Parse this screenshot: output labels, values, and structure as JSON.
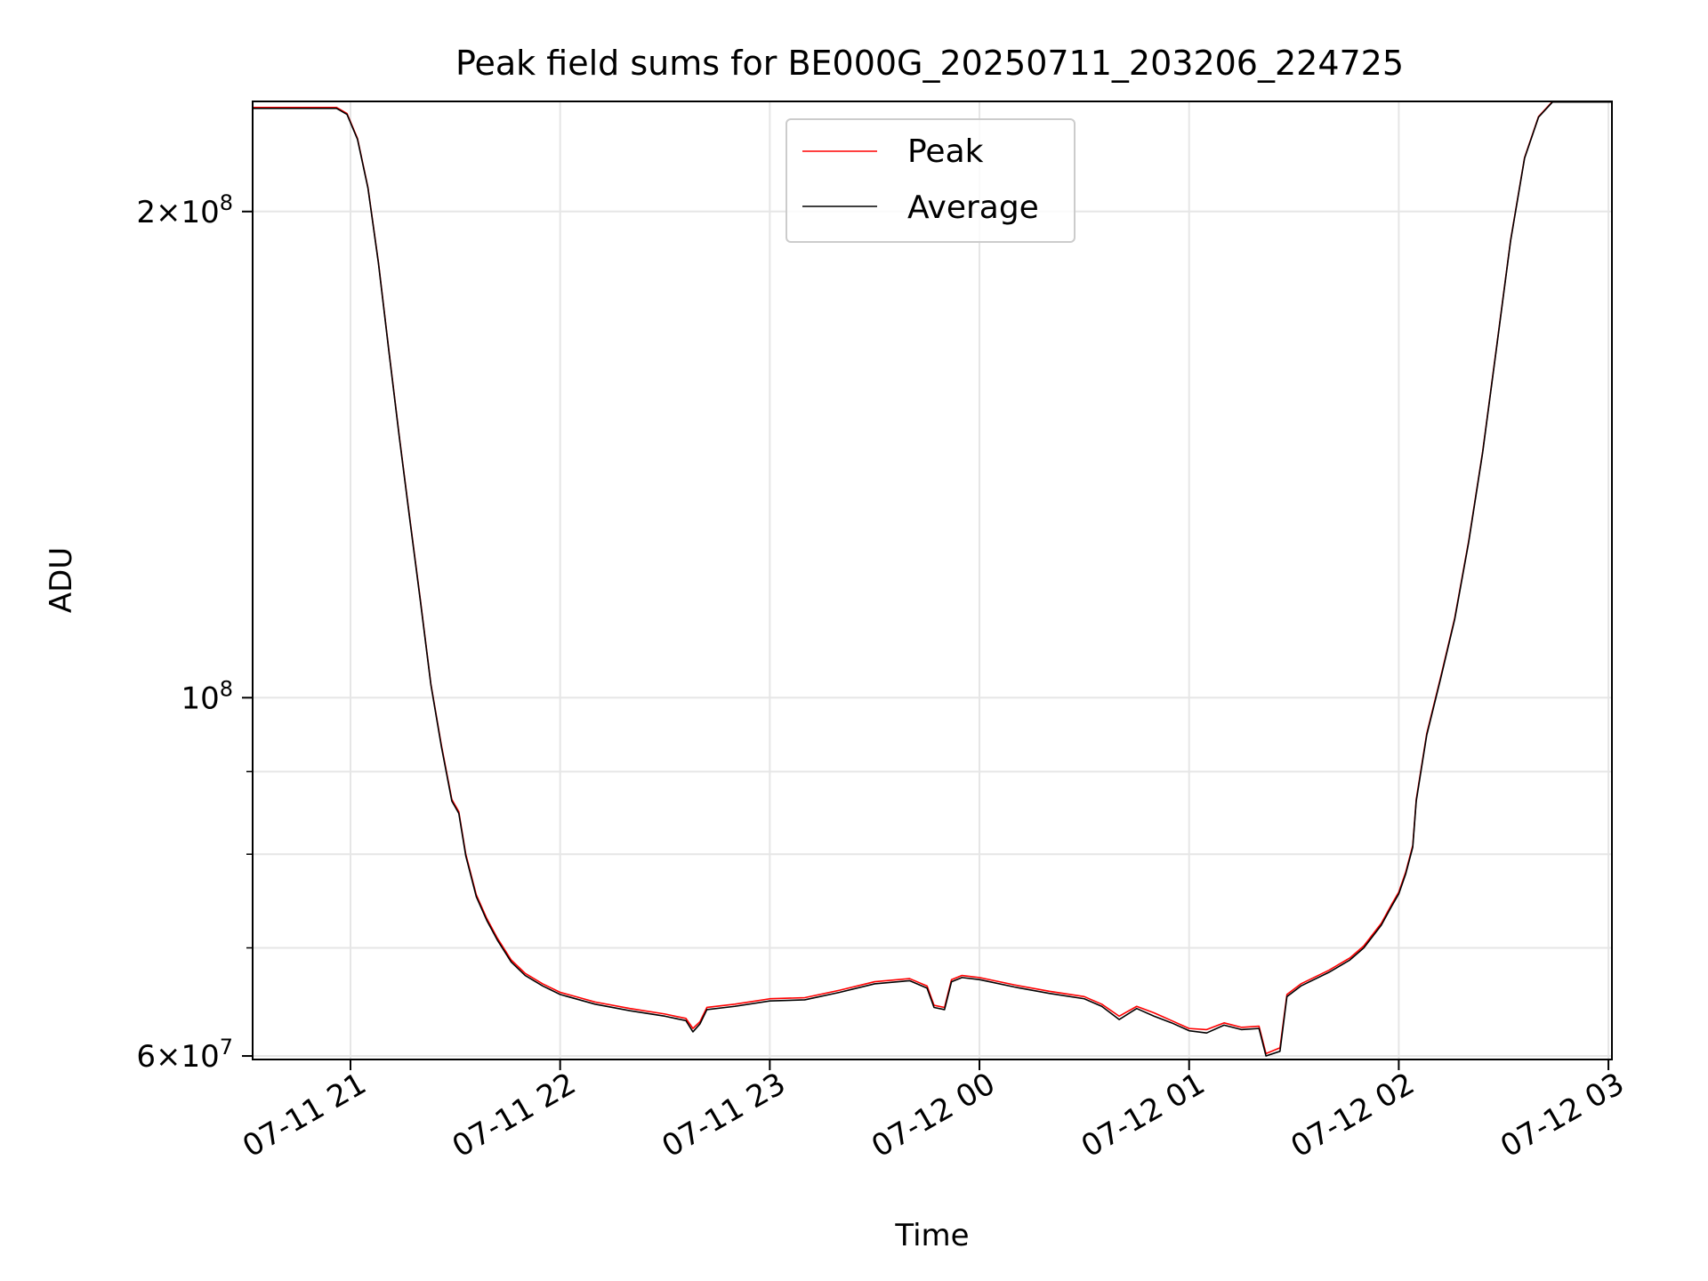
{
  "chart_data": {
    "type": "line",
    "title": "Peak field sums for BE000G_20250711_203206_224725",
    "xlabel": "Time",
    "ylabel": "ADU",
    "yscale": "log",
    "grid": true,
    "legend_position": "upper center",
    "xlim": [
      "2025-07-11 20:32",
      "2025-07-12 03:01"
    ],
    "ylim": [
      59700000,
      234000000
    ],
    "x_ticks": [
      "2025-07-11 21:00",
      "2025-07-11 22:00",
      "2025-07-11 23:00",
      "2025-07-12 00:00",
      "2025-07-12 01:00",
      "2025-07-12 02:00",
      "2025-07-12 03:00"
    ],
    "x_tick_labels": [
      "07-11 21",
      "07-11 22",
      "07-11 23",
      "07-12 00",
      "07-12 01",
      "07-12 02",
      "07-12 03"
    ],
    "y_major_ticks": [
      {
        "value": 60000000,
        "mantissa": "6",
        "exponent": "7"
      },
      {
        "value": 100000000,
        "mantissa": "",
        "exponent": "8"
      },
      {
        "value": 200000000,
        "mantissa": "2",
        "exponent": "8"
      }
    ],
    "y_minor_ticks": [
      70000000,
      80000000,
      90000000
    ],
    "series": [
      {
        "name": "Peak",
        "color": "#ff0000",
        "points": [
          [
            "2025-07-11 20:32",
            232000000
          ],
          [
            "2025-07-11 20:56",
            232000000
          ],
          [
            "2025-07-11 20:59",
            230000000
          ],
          [
            "2025-07-11 21:02",
            222000000
          ],
          [
            "2025-07-11 21:05",
            207000000
          ],
          [
            "2025-07-11 21:08",
            186000000
          ],
          [
            "2025-07-11 21:11",
            164000000
          ],
          [
            "2025-07-11 21:14",
            145000000
          ],
          [
            "2025-07-11 21:17",
            129000000
          ],
          [
            "2025-07-11 21:20",
            115000000
          ],
          [
            "2025-07-11 21:23",
            102000000
          ],
          [
            "2025-07-11 21:26",
            93500000
          ],
          [
            "2025-07-11 21:29",
            86500000
          ],
          [
            "2025-07-11 21:31",
            85000000
          ],
          [
            "2025-07-11 21:33",
            80000000
          ],
          [
            "2025-07-11 21:36",
            75500000
          ],
          [
            "2025-07-11 21:39",
            73000000
          ],
          [
            "2025-07-11 21:42",
            71000000
          ],
          [
            "2025-07-11 21:46",
            68800000
          ],
          [
            "2025-07-11 21:50",
            67500000
          ],
          [
            "2025-07-11 21:55",
            66500000
          ],
          [
            "2025-07-11 22:00",
            65700000
          ],
          [
            "2025-07-11 22:10",
            64800000
          ],
          [
            "2025-07-11 22:20",
            64200000
          ],
          [
            "2025-07-11 22:30",
            63700000
          ],
          [
            "2025-07-11 22:36",
            63300000
          ],
          [
            "2025-07-11 22:38",
            62400000
          ],
          [
            "2025-07-11 22:40",
            63000000
          ],
          [
            "2025-07-11 22:42",
            64300000
          ],
          [
            "2025-07-11 22:50",
            64600000
          ],
          [
            "2025-07-11 23:00",
            65100000
          ],
          [
            "2025-07-11 23:10",
            65200000
          ],
          [
            "2025-07-11 23:20",
            65900000
          ],
          [
            "2025-07-11 23:30",
            66700000
          ],
          [
            "2025-07-11 23:40",
            67000000
          ],
          [
            "2025-07-11 23:45",
            66300000
          ],
          [
            "2025-07-11 23:47",
            64500000
          ],
          [
            "2025-07-11 23:50",
            64300000
          ],
          [
            "2025-07-11 23:52",
            66900000
          ],
          [
            "2025-07-11 23:55",
            67300000
          ],
          [
            "2025-07-12 00:00",
            67100000
          ],
          [
            "2025-07-12 00:10",
            66400000
          ],
          [
            "2025-07-12 00:20",
            65800000
          ],
          [
            "2025-07-12 00:30",
            65300000
          ],
          [
            "2025-07-12 00:35",
            64600000
          ],
          [
            "2025-07-12 00:40",
            63500000
          ],
          [
            "2025-07-12 00:45",
            64400000
          ],
          [
            "2025-07-12 00:50",
            63800000
          ],
          [
            "2025-07-12 00:55",
            63100000
          ],
          [
            "2025-07-12 01:00",
            62400000
          ],
          [
            "2025-07-12 01:05",
            62300000
          ],
          [
            "2025-07-12 01:10",
            62900000
          ],
          [
            "2025-07-12 01:15",
            62500000
          ],
          [
            "2025-07-12 01:20",
            62600000
          ],
          [
            "2025-07-12 01:22",
            60200000
          ],
          [
            "2025-07-12 01:26",
            60700000
          ],
          [
            "2025-07-12 01:28",
            65500000
          ],
          [
            "2025-07-12 01:32",
            66500000
          ],
          [
            "2025-07-12 01:40",
            67800000
          ],
          [
            "2025-07-12 01:46",
            69000000
          ],
          [
            "2025-07-12 01:50",
            70200000
          ],
          [
            "2025-07-12 01:55",
            72500000
          ],
          [
            "2025-07-12 01:58",
            74500000
          ],
          [
            "2025-07-12 02:00",
            75800000
          ],
          [
            "2025-07-12 02:02",
            78000000
          ],
          [
            "2025-07-12 02:04",
            81000000
          ],
          [
            "2025-07-12 02:05",
            86500000
          ],
          [
            "2025-07-12 02:08",
            95000000
          ],
          [
            "2025-07-12 02:12",
            103000000
          ],
          [
            "2025-07-12 02:16",
            112000000
          ],
          [
            "2025-07-12 02:20",
            125000000
          ],
          [
            "2025-07-12 02:24",
            142000000
          ],
          [
            "2025-07-12 02:28",
            165000000
          ],
          [
            "2025-07-12 02:32",
            192000000
          ],
          [
            "2025-07-12 02:36",
            216000000
          ],
          [
            "2025-07-12 02:40",
            229000000
          ],
          [
            "2025-07-12 02:44",
            234000000
          ],
          [
            "2025-07-12 03:01",
            234000000
          ]
        ]
      },
      {
        "name": "Average",
        "color": "#000000",
        "points": [
          [
            "2025-07-11 20:32",
            231700000
          ],
          [
            "2025-07-11 20:56",
            231700000
          ],
          [
            "2025-07-11 20:59",
            229700000
          ],
          [
            "2025-07-11 21:02",
            221700000
          ],
          [
            "2025-07-11 21:05",
            206800000
          ],
          [
            "2025-07-11 21:08",
            185800000
          ],
          [
            "2025-07-11 21:11",
            163800000
          ],
          [
            "2025-07-11 21:14",
            144800000
          ],
          [
            "2025-07-11 21:17",
            128800000
          ],
          [
            "2025-07-11 21:20",
            114800000
          ],
          [
            "2025-07-11 21:23",
            101900000
          ],
          [
            "2025-07-11 21:26",
            93300000
          ],
          [
            "2025-07-11 21:29",
            86300000
          ],
          [
            "2025-07-11 21:31",
            84800000
          ],
          [
            "2025-07-11 21:33",
            79800000
          ],
          [
            "2025-07-11 21:36",
            75300000
          ],
          [
            "2025-07-11 21:39",
            72800000
          ],
          [
            "2025-07-11 21:42",
            70800000
          ],
          [
            "2025-07-11 21:46",
            68600000
          ],
          [
            "2025-07-11 21:50",
            67300000
          ],
          [
            "2025-07-11 21:55",
            66300000
          ],
          [
            "2025-07-11 22:00",
            65500000
          ],
          [
            "2025-07-11 22:10",
            64600000
          ],
          [
            "2025-07-11 22:20",
            64000000
          ],
          [
            "2025-07-11 22:30",
            63500000
          ],
          [
            "2025-07-11 22:36",
            63100000
          ],
          [
            "2025-07-11 22:38",
            62100000
          ],
          [
            "2025-07-11 22:40",
            62800000
          ],
          [
            "2025-07-11 22:42",
            64100000
          ],
          [
            "2025-07-11 22:50",
            64400000
          ],
          [
            "2025-07-11 23:00",
            64900000
          ],
          [
            "2025-07-11 23:10",
            65000000
          ],
          [
            "2025-07-11 23:20",
            65700000
          ],
          [
            "2025-07-11 23:30",
            66500000
          ],
          [
            "2025-07-11 23:40",
            66800000
          ],
          [
            "2025-07-11 23:45",
            66100000
          ],
          [
            "2025-07-11 23:47",
            64300000
          ],
          [
            "2025-07-11 23:50",
            64100000
          ],
          [
            "2025-07-11 23:52",
            66700000
          ],
          [
            "2025-07-11 23:55",
            67100000
          ],
          [
            "2025-07-12 00:00",
            66900000
          ],
          [
            "2025-07-12 00:10",
            66200000
          ],
          [
            "2025-07-12 00:20",
            65600000
          ],
          [
            "2025-07-12 00:30",
            65100000
          ],
          [
            "2025-07-12 00:35",
            64400000
          ],
          [
            "2025-07-12 00:40",
            63200000
          ],
          [
            "2025-07-12 00:45",
            64200000
          ],
          [
            "2025-07-12 00:50",
            63500000
          ],
          [
            "2025-07-12 00:55",
            62900000
          ],
          [
            "2025-07-12 01:00",
            62200000
          ],
          [
            "2025-07-12 01:05",
            62000000
          ],
          [
            "2025-07-12 01:10",
            62700000
          ],
          [
            "2025-07-12 01:15",
            62300000
          ],
          [
            "2025-07-12 01:20",
            62400000
          ],
          [
            "2025-07-12 01:22",
            60000000
          ],
          [
            "2025-07-12 01:26",
            60400000
          ],
          [
            "2025-07-12 01:28",
            65300000
          ],
          [
            "2025-07-12 01:32",
            66300000
          ],
          [
            "2025-07-12 01:40",
            67600000
          ],
          [
            "2025-07-12 01:46",
            68800000
          ],
          [
            "2025-07-12 01:50",
            70000000
          ],
          [
            "2025-07-12 01:55",
            72300000
          ],
          [
            "2025-07-12 01:58",
            74300000
          ],
          [
            "2025-07-12 02:00",
            75600000
          ],
          [
            "2025-07-12 02:02",
            77800000
          ],
          [
            "2025-07-12 02:04",
            80800000
          ],
          [
            "2025-07-12 02:05",
            86300000
          ],
          [
            "2025-07-12 02:08",
            94800000
          ],
          [
            "2025-07-12 02:12",
            102800000
          ],
          [
            "2025-07-12 02:16",
            111800000
          ],
          [
            "2025-07-12 02:20",
            124800000
          ],
          [
            "2025-07-12 02:24",
            141800000
          ],
          [
            "2025-07-12 02:28",
            164800000
          ],
          [
            "2025-07-12 02:32",
            191800000
          ],
          [
            "2025-07-12 02:36",
            215800000
          ],
          [
            "2025-07-12 02:40",
            228800000
          ],
          [
            "2025-07-12 02:44",
            233800000
          ],
          [
            "2025-07-12 03:01",
            233800000
          ]
        ]
      }
    ]
  }
}
